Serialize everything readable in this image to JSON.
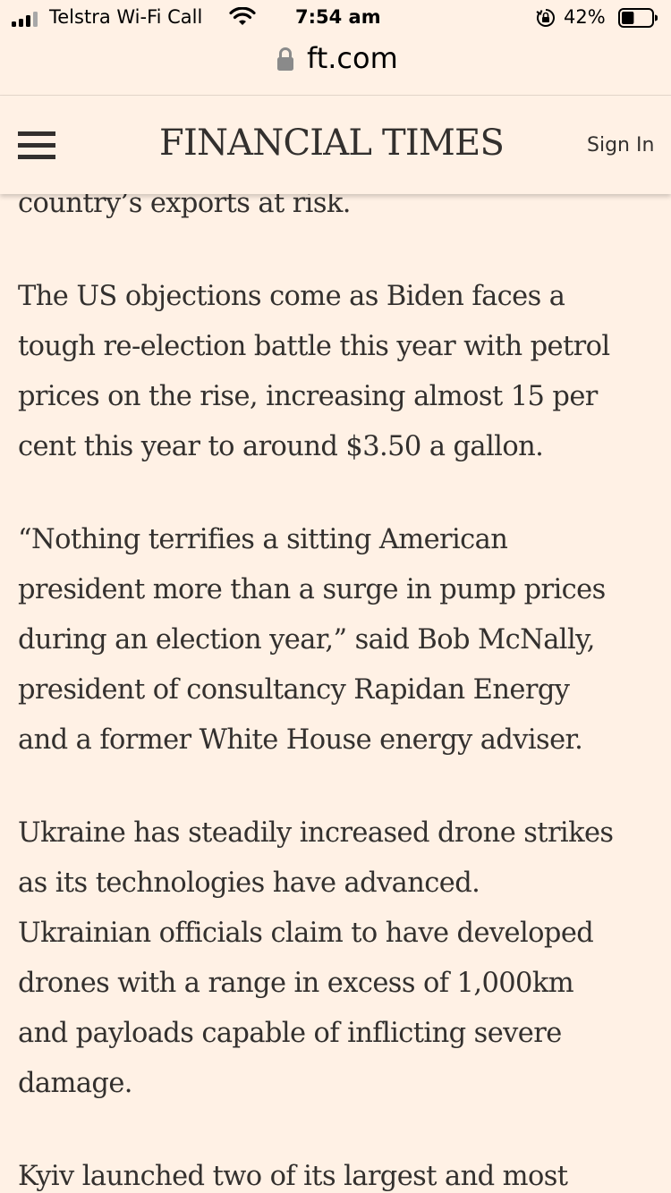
{
  "status_bar": {
    "carrier": "Telstra Wi-Fi Call",
    "time": "7:54 am",
    "battery_percent": "42%",
    "battery_level": 0.42,
    "signal_bars_active": 3,
    "signal_bars_total": 4,
    "icons": [
      "signal-icon",
      "wifi-icon",
      "rotation-lock-icon",
      "battery-icon"
    ]
  },
  "browser": {
    "url": "ft.com",
    "icons": [
      "lock-icon"
    ]
  },
  "header": {
    "logo": "FINANCIAL TIMES",
    "sign_in_label": "Sign In",
    "icons": [
      "menu-icon"
    ]
  },
  "article": {
    "paragraphs": [
      {
        "lines": [
          "country’s exports at risk."
        ]
      },
      {
        "lines": [
          "The US objections come as Biden faces a",
          "tough re-election battle this year with petrol",
          "prices on the rise, increasing almost 15 per",
          "cent this year to around $3.50 a gallon."
        ]
      },
      {
        "lines": [
          "“Nothing terrifies a sitting American",
          "president more than a surge in pump prices",
          "during an election year,” said Bob McNally,",
          "president of consultancy Rapidan Energy",
          "and a former White House energy adviser."
        ]
      },
      {
        "lines": [
          "Ukraine has steadily increased drone strikes",
          "as its technologies have advanced.",
          "Ukrainian officials claim to have developed",
          "drones with a range in excess of 1,000km",
          "and payloads capable of inflicting severe",
          "damage."
        ]
      },
      {
        "lines": [
          "Kyiv launched two of its largest and most"
        ]
      }
    ]
  },
  "colors": {
    "background": "#fff1e5",
    "text": "#33302e"
  }
}
